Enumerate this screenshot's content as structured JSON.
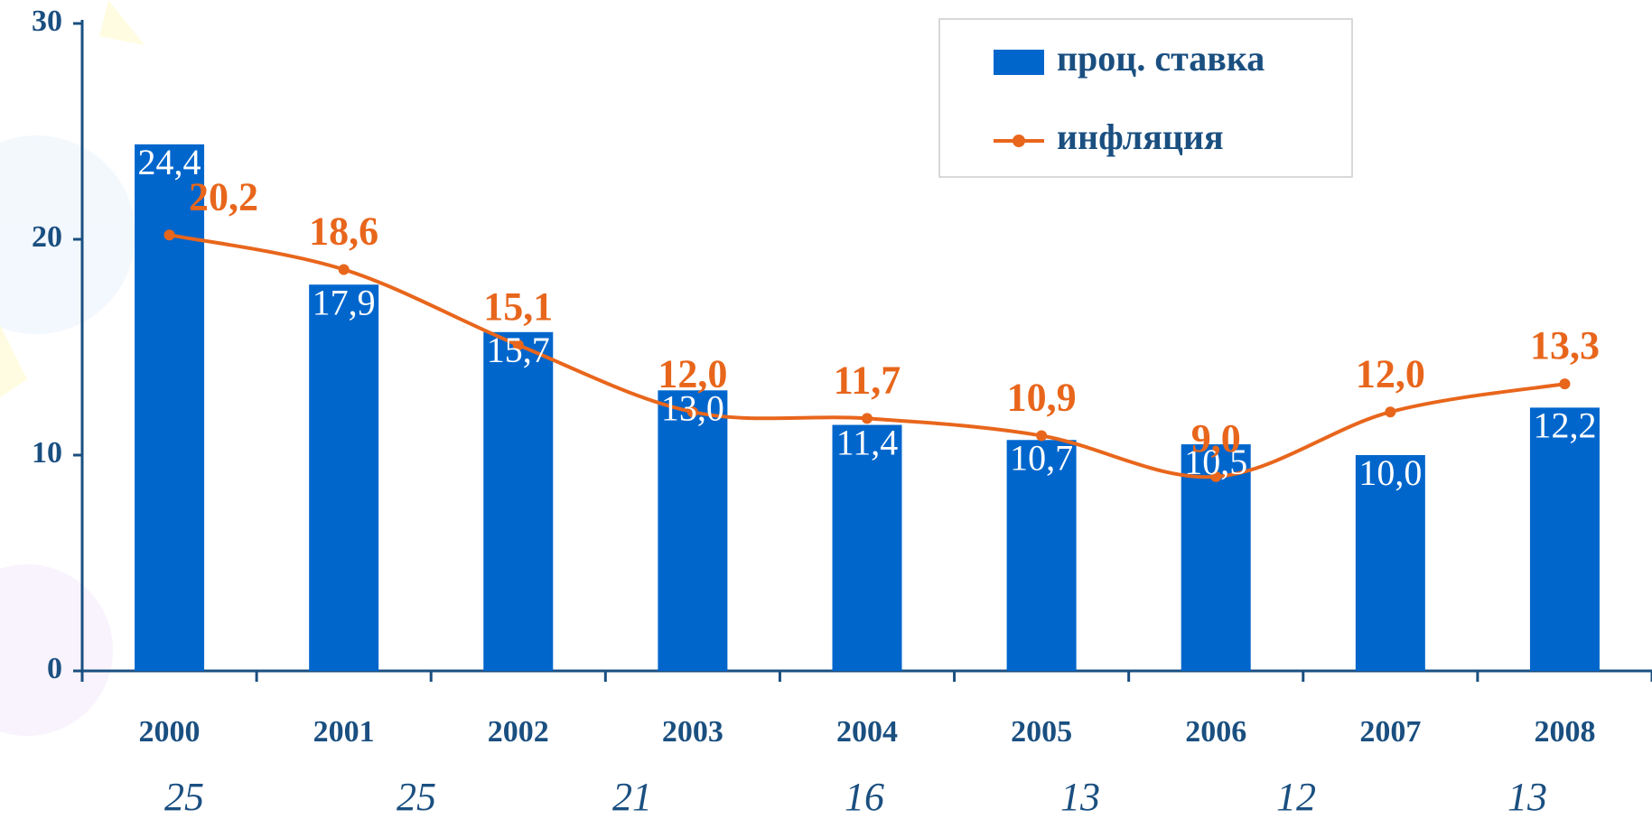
{
  "chart_data": {
    "type": "bar_line",
    "categories": [
      "2000",
      "2001",
      "2002",
      "2003",
      "2004",
      "2005",
      "2006",
      "2007",
      "2008"
    ],
    "series": [
      {
        "name": "проц. ставка",
        "type": "bar",
        "color": "#0066cc",
        "values": [
          24.4,
          17.9,
          15.7,
          13.0,
          11.4,
          10.7,
          10.5,
          10.0,
          12.2
        ],
        "value_labels": [
          "24,4",
          "17,9",
          "15,7",
          "13,0",
          "11,4",
          "10,7",
          "10,5",
          "10,0",
          "12,2"
        ]
      },
      {
        "name": "инфляция",
        "type": "line",
        "color": "#e8661c",
        "values": [
          20.2,
          18.6,
          15.1,
          12.0,
          11.7,
          10.9,
          9.0,
          12.0,
          13.3
        ],
        "value_labels": [
          "20,2",
          "18,6",
          "15,1",
          "12,0",
          "11,7",
          "10,9",
          "9,0",
          "12,0",
          "13,3"
        ]
      }
    ],
    "ylim": [
      0,
      30
    ],
    "yticks": [
      0,
      10,
      20,
      30
    ],
    "annotations": [
      "25",
      "25",
      "21",
      "16",
      "13",
      "12",
      "13"
    ],
    "legend": "upper right"
  }
}
